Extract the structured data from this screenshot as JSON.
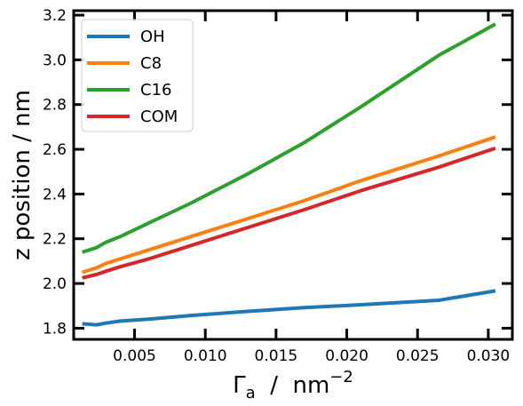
{
  "chart_data": {
    "type": "line",
    "xlabel_main": "Γ",
    "xlabel_sub": "a",
    "xlabel_rest": "  /  nm",
    "xlabel_sup": "−2",
    "ylabel": "z position  /  nm",
    "xlim": [
      0.0007,
      0.0317
    ],
    "ylim": [
      1.75,
      3.22
    ],
    "x_ticks": [
      0.005,
      0.01,
      0.015,
      0.02,
      0.025,
      0.03
    ],
    "x_tick_labels": [
      "0.005",
      "0.010",
      "0.015",
      "0.020",
      "0.025",
      "0.030"
    ],
    "y_ticks": [
      1.8,
      2.0,
      2.2,
      2.4,
      2.6,
      2.8,
      3.0,
      3.2
    ],
    "y_tick_labels": [
      "1.8",
      "2.0",
      "2.2",
      "2.4",
      "2.6",
      "2.8",
      "3.0",
      "3.2"
    ],
    "grid": false,
    "legend_position": "top-left",
    "series": [
      {
        "name": "OH",
        "color": "#1f77b4",
        "x": [
          0.0013,
          0.0023,
          0.003,
          0.004,
          0.006,
          0.009,
          0.013,
          0.017,
          0.021,
          0.0265,
          0.0305
        ],
        "y": [
          1.82,
          1.815,
          1.823,
          1.832,
          1.84,
          1.857,
          1.875,
          1.892,
          1.905,
          1.925,
          1.967
        ]
      },
      {
        "name": "C8",
        "color": "#ff7f0e",
        "x": [
          0.0013,
          0.0023,
          0.003,
          0.004,
          0.006,
          0.009,
          0.013,
          0.017,
          0.021,
          0.0265,
          0.0305
        ],
        "y": [
          2.05,
          2.07,
          2.09,
          2.11,
          2.15,
          2.21,
          2.29,
          2.37,
          2.46,
          2.57,
          2.655
        ]
      },
      {
        "name": "C16",
        "color": "#2ca02c",
        "x": [
          0.0013,
          0.0023,
          0.003,
          0.004,
          0.006,
          0.009,
          0.013,
          0.017,
          0.021,
          0.0265,
          0.0305
        ],
        "y": [
          2.14,
          2.16,
          2.185,
          2.21,
          2.27,
          2.36,
          2.49,
          2.63,
          2.79,
          3.02,
          3.16
        ]
      },
      {
        "name": "COM",
        "color": "#d62728",
        "x": [
          0.0013,
          0.0023,
          0.003,
          0.004,
          0.006,
          0.009,
          0.013,
          0.017,
          0.021,
          0.0265,
          0.0305
        ],
        "y": [
          2.025,
          2.04,
          2.055,
          2.075,
          2.11,
          2.17,
          2.25,
          2.33,
          2.415,
          2.52,
          2.605
        ]
      }
    ]
  }
}
